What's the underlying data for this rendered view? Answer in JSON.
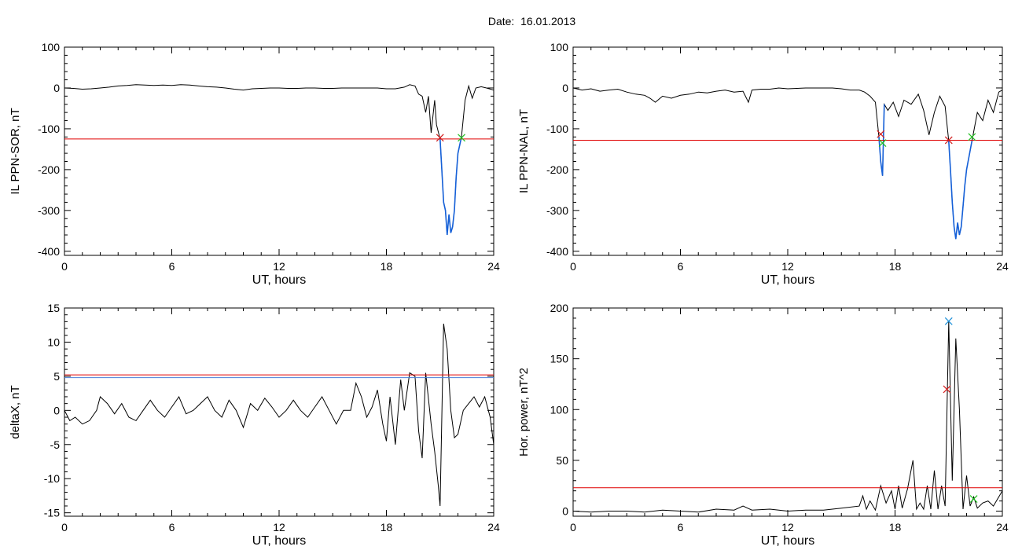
{
  "figure_title": "Date:  16.01.2013",
  "colors": {
    "trace": "#000000",
    "threshold": "#e00000",
    "highlight": "#1560d8",
    "start_marker": "#d21e1e",
    "end_marker": "#22c022",
    "peak_marker": "#1c8fd8",
    "threshold_blue": "#4a7fd8"
  },
  "chart_data": [
    {
      "type": "line",
      "ylabel": "IL PPN-SOR, nT",
      "xlabel": "UT, hours",
      "xlim": [
        0,
        24
      ],
      "ylim": [
        -410,
        100
      ],
      "xticks": [
        0,
        6,
        12,
        18,
        24
      ],
      "yticks": [
        100,
        0,
        -100,
        -200,
        -300,
        -400
      ],
      "threshold": -125,
      "highlight_range": [
        21,
        22.2
      ],
      "markers": [
        {
          "x": 21.0,
          "y": -122,
          "color": "red"
        },
        {
          "x": 22.2,
          "y": -122,
          "color": "green"
        }
      ],
      "series": [
        {
          "x": [
            0,
            0.5,
            1.0,
            1.5,
            2.0,
            2.5,
            3.0,
            3.5,
            4.0,
            4.5,
            5.0,
            5.5,
            6.0,
            6.5,
            7.0,
            7.5,
            8.0,
            8.5,
            9.0,
            9.5,
            10.0,
            10.5,
            11.0,
            11.5,
            12.0,
            12.5,
            13.0,
            13.5,
            14.0,
            14.5,
            15.0,
            15.5,
            16.0,
            16.5,
            17.0,
            17.5,
            18.0,
            18.5,
            19.0,
            19.3,
            19.6,
            19.8,
            20.0,
            20.2,
            20.35,
            20.5,
            20.7,
            20.8,
            21.0,
            21.1,
            21.2,
            21.3,
            21.4,
            21.5,
            21.6,
            21.7,
            21.8,
            21.9,
            22.0,
            22.2,
            22.4,
            22.6,
            22.8,
            23.0,
            23.3,
            23.6,
            24.0
          ],
          "y": [
            0,
            -1,
            -3,
            -2,
            0,
            2,
            5,
            6,
            8,
            7,
            6,
            7,
            6,
            8,
            7,
            5,
            3,
            2,
            0,
            -3,
            -5,
            -2,
            -1,
            0,
            0,
            -1,
            -1,
            0,
            0,
            -1,
            -1,
            0,
            0,
            0,
            0,
            0,
            -2,
            -2,
            2,
            8,
            5,
            -15,
            -20,
            -60,
            -20,
            -110,
            -30,
            -90,
            -125,
            -200,
            -280,
            -300,
            -360,
            -310,
            -355,
            -340,
            -300,
            -220,
            -160,
            -120,
            -30,
            5,
            -25,
            0,
            3,
            0,
            -5
          ]
        }
      ]
    },
    {
      "type": "line",
      "ylabel": "IL PPN-NAL, nT",
      "xlabel": "UT, hours",
      "xlim": [
        0,
        24
      ],
      "ylim": [
        -410,
        100
      ],
      "xticks": [
        0,
        6,
        12,
        18,
        24
      ],
      "yticks": [
        100,
        0,
        -100,
        -200,
        -300,
        -400
      ],
      "threshold": -128,
      "highlight_ranges": [
        [
          17.1,
          17.4
        ],
        [
          21.0,
          22.3
        ]
      ],
      "markers": [
        {
          "x": 17.2,
          "y": -113,
          "color": "red"
        },
        {
          "x": 17.3,
          "y": -135,
          "color": "green"
        },
        {
          "x": 21.0,
          "y": -128,
          "color": "red"
        },
        {
          "x": 22.3,
          "y": -120,
          "color": "green"
        }
      ],
      "series": [
        {
          "x": [
            0,
            0.5,
            1.0,
            1.5,
            2.0,
            2.5,
            3.0,
            3.5,
            4.0,
            4.3,
            4.6,
            5.0,
            5.5,
            6.0,
            6.5,
            7.0,
            7.5,
            8.0,
            8.5,
            9.0,
            9.5,
            9.8,
            10.0,
            10.5,
            11.0,
            11.5,
            12.0,
            12.5,
            13.0,
            13.5,
            14.0,
            14.5,
            15.0,
            15.5,
            16.0,
            16.3,
            16.6,
            16.9,
            17.1,
            17.2,
            17.3,
            17.4,
            17.6,
            17.9,
            18.2,
            18.5,
            18.9,
            19.3,
            19.6,
            19.9,
            20.2,
            20.5,
            20.8,
            21.0,
            21.1,
            21.2,
            21.3,
            21.4,
            21.5,
            21.6,
            21.7,
            21.8,
            21.9,
            22.0,
            22.3,
            22.6,
            22.9,
            23.2,
            23.5,
            23.8,
            24.0
          ],
          "y": [
            0,
            -5,
            -2,
            -8,
            -5,
            -3,
            -10,
            -15,
            -18,
            -25,
            -35,
            -20,
            -25,
            -18,
            -15,
            -10,
            -12,
            -8,
            -5,
            -10,
            -8,
            -35,
            -5,
            -3,
            -3,
            0,
            -2,
            -1,
            0,
            0,
            0,
            0,
            -2,
            -5,
            -5,
            -10,
            -20,
            -35,
            -120,
            -180,
            -215,
            -40,
            -55,
            -35,
            -70,
            -30,
            -40,
            -15,
            -55,
            -115,
            -60,
            -20,
            -45,
            -130,
            -200,
            -280,
            -340,
            -370,
            -330,
            -360,
            -340,
            -290,
            -240,
            -200,
            -130,
            -60,
            -80,
            -30,
            -60,
            -10,
            -5
          ]
        }
      ]
    },
    {
      "type": "line",
      "ylabel": "deltaX, nT",
      "xlabel": "UT, hours",
      "xlim": [
        0,
        24
      ],
      "ylim": [
        -15.5,
        15
      ],
      "xticks": [
        0,
        6,
        12,
        18,
        24
      ],
      "yticks": [
        15,
        10,
        5,
        0,
        -5,
        -10,
        -15
      ],
      "thresholds": [
        {
          "y": 5.2,
          "color": "red"
        },
        {
          "y": 4.8,
          "color": "blue"
        }
      ],
      "series": [
        {
          "x": [
            0,
            0.3,
            0.6,
            1.0,
            1.4,
            1.8,
            2.0,
            2.4,
            2.8,
            3.2,
            3.6,
            4.0,
            4.4,
            4.8,
            5.2,
            5.6,
            6.0,
            6.4,
            6.8,
            7.2,
            7.6,
            8.0,
            8.4,
            8.8,
            9.2,
            9.6,
            10.0,
            10.4,
            10.8,
            11.2,
            11.6,
            12.0,
            12.4,
            12.8,
            13.2,
            13.6,
            14.0,
            14.4,
            14.8,
            15.2,
            15.6,
            16.0,
            16.3,
            16.6,
            16.9,
            17.2,
            17.5,
            17.8,
            18.0,
            18.2,
            18.5,
            18.8,
            19.0,
            19.3,
            19.6,
            19.8,
            20.0,
            20.2,
            20.5,
            20.7,
            20.9,
            21.0,
            21.2,
            21.4,
            21.6,
            21.8,
            22.0,
            22.3,
            22.6,
            22.9,
            23.2,
            23.5,
            23.8,
            24.0
          ],
          "y": [
            0,
            -1.5,
            -1,
            -2,
            -1.5,
            0,
            2,
            1,
            -0.5,
            1,
            -1,
            -1.5,
            0,
            1.5,
            0,
            -1,
            0.5,
            2,
            -0.5,
            0,
            1,
            2,
            0,
            -1,
            1.5,
            0,
            -2.5,
            1,
            0,
            1.8,
            0.5,
            -1,
            0,
            1.5,
            0,
            -1,
            0.5,
            2,
            0,
            -2,
            0,
            0,
            4,
            2,
            -1,
            0.5,
            3,
            -2,
            -4.5,
            2,
            -5,
            4.5,
            0,
            5.5,
            5,
            -3,
            -7,
            5.5,
            -2,
            -6,
            -11,
            -14,
            12.7,
            9,
            0,
            -4,
            -3.5,
            0,
            1,
            2,
            0.5,
            2,
            -1,
            -5
          ]
        }
      ]
    },
    {
      "type": "line",
      "ylabel": "Hor. power, nT^2",
      "xlabel": "UT, hours",
      "xlim": [
        0,
        24
      ],
      "ylim": [
        -5,
        200
      ],
      "xticks": [
        0,
        6,
        12,
        18,
        24
      ],
      "yticks": [
        200,
        150,
        100,
        50,
        0
      ],
      "threshold": 23,
      "markers": [
        {
          "x": 20.9,
          "y": 120,
          "color": "red"
        },
        {
          "x": 21.0,
          "y": 187,
          "color": "blue"
        },
        {
          "x": 22.4,
          "y": 12,
          "color": "green"
        }
      ],
      "series": [
        {
          "x": [
            0,
            1,
            2,
            3,
            4,
            5,
            6,
            7,
            8,
            9,
            9.5,
            10,
            11,
            12,
            13,
            14,
            15,
            16,
            16.2,
            16.4,
            16.6,
            16.9,
            17.2,
            17.5,
            17.8,
            18.0,
            18.2,
            18.4,
            18.7,
            19.0,
            19.2,
            19.4,
            19.6,
            19.8,
            20.0,
            20.2,
            20.4,
            20.6,
            20.8,
            21.0,
            21.2,
            21.4,
            21.6,
            21.8,
            22.0,
            22.2,
            22.4,
            22.6,
            22.9,
            23.2,
            23.5,
            24.0
          ],
          "y": [
            0,
            -1,
            0,
            0,
            -1,
            1,
            0,
            -1,
            2,
            1,
            5,
            1,
            2,
            0,
            1,
            1,
            3,
            5,
            15,
            2,
            10,
            1,
            25,
            8,
            20,
            2,
            25,
            3,
            22,
            50,
            2,
            8,
            2,
            25,
            2,
            40,
            2,
            25,
            5,
            187,
            30,
            170,
            100,
            2,
            35,
            5,
            14,
            3,
            8,
            10,
            5,
            20
          ]
        }
      ]
    }
  ]
}
